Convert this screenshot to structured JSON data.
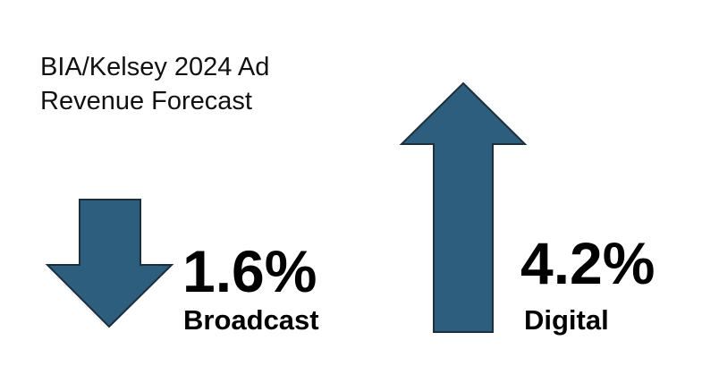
{
  "title": "BIA/Kelsey 2024 Ad Revenue Forecast",
  "items": [
    {
      "value": "1.6%",
      "label": "Broadcast"
    },
    {
      "value": "4.2%",
      "label": "Digital"
    }
  ]
}
